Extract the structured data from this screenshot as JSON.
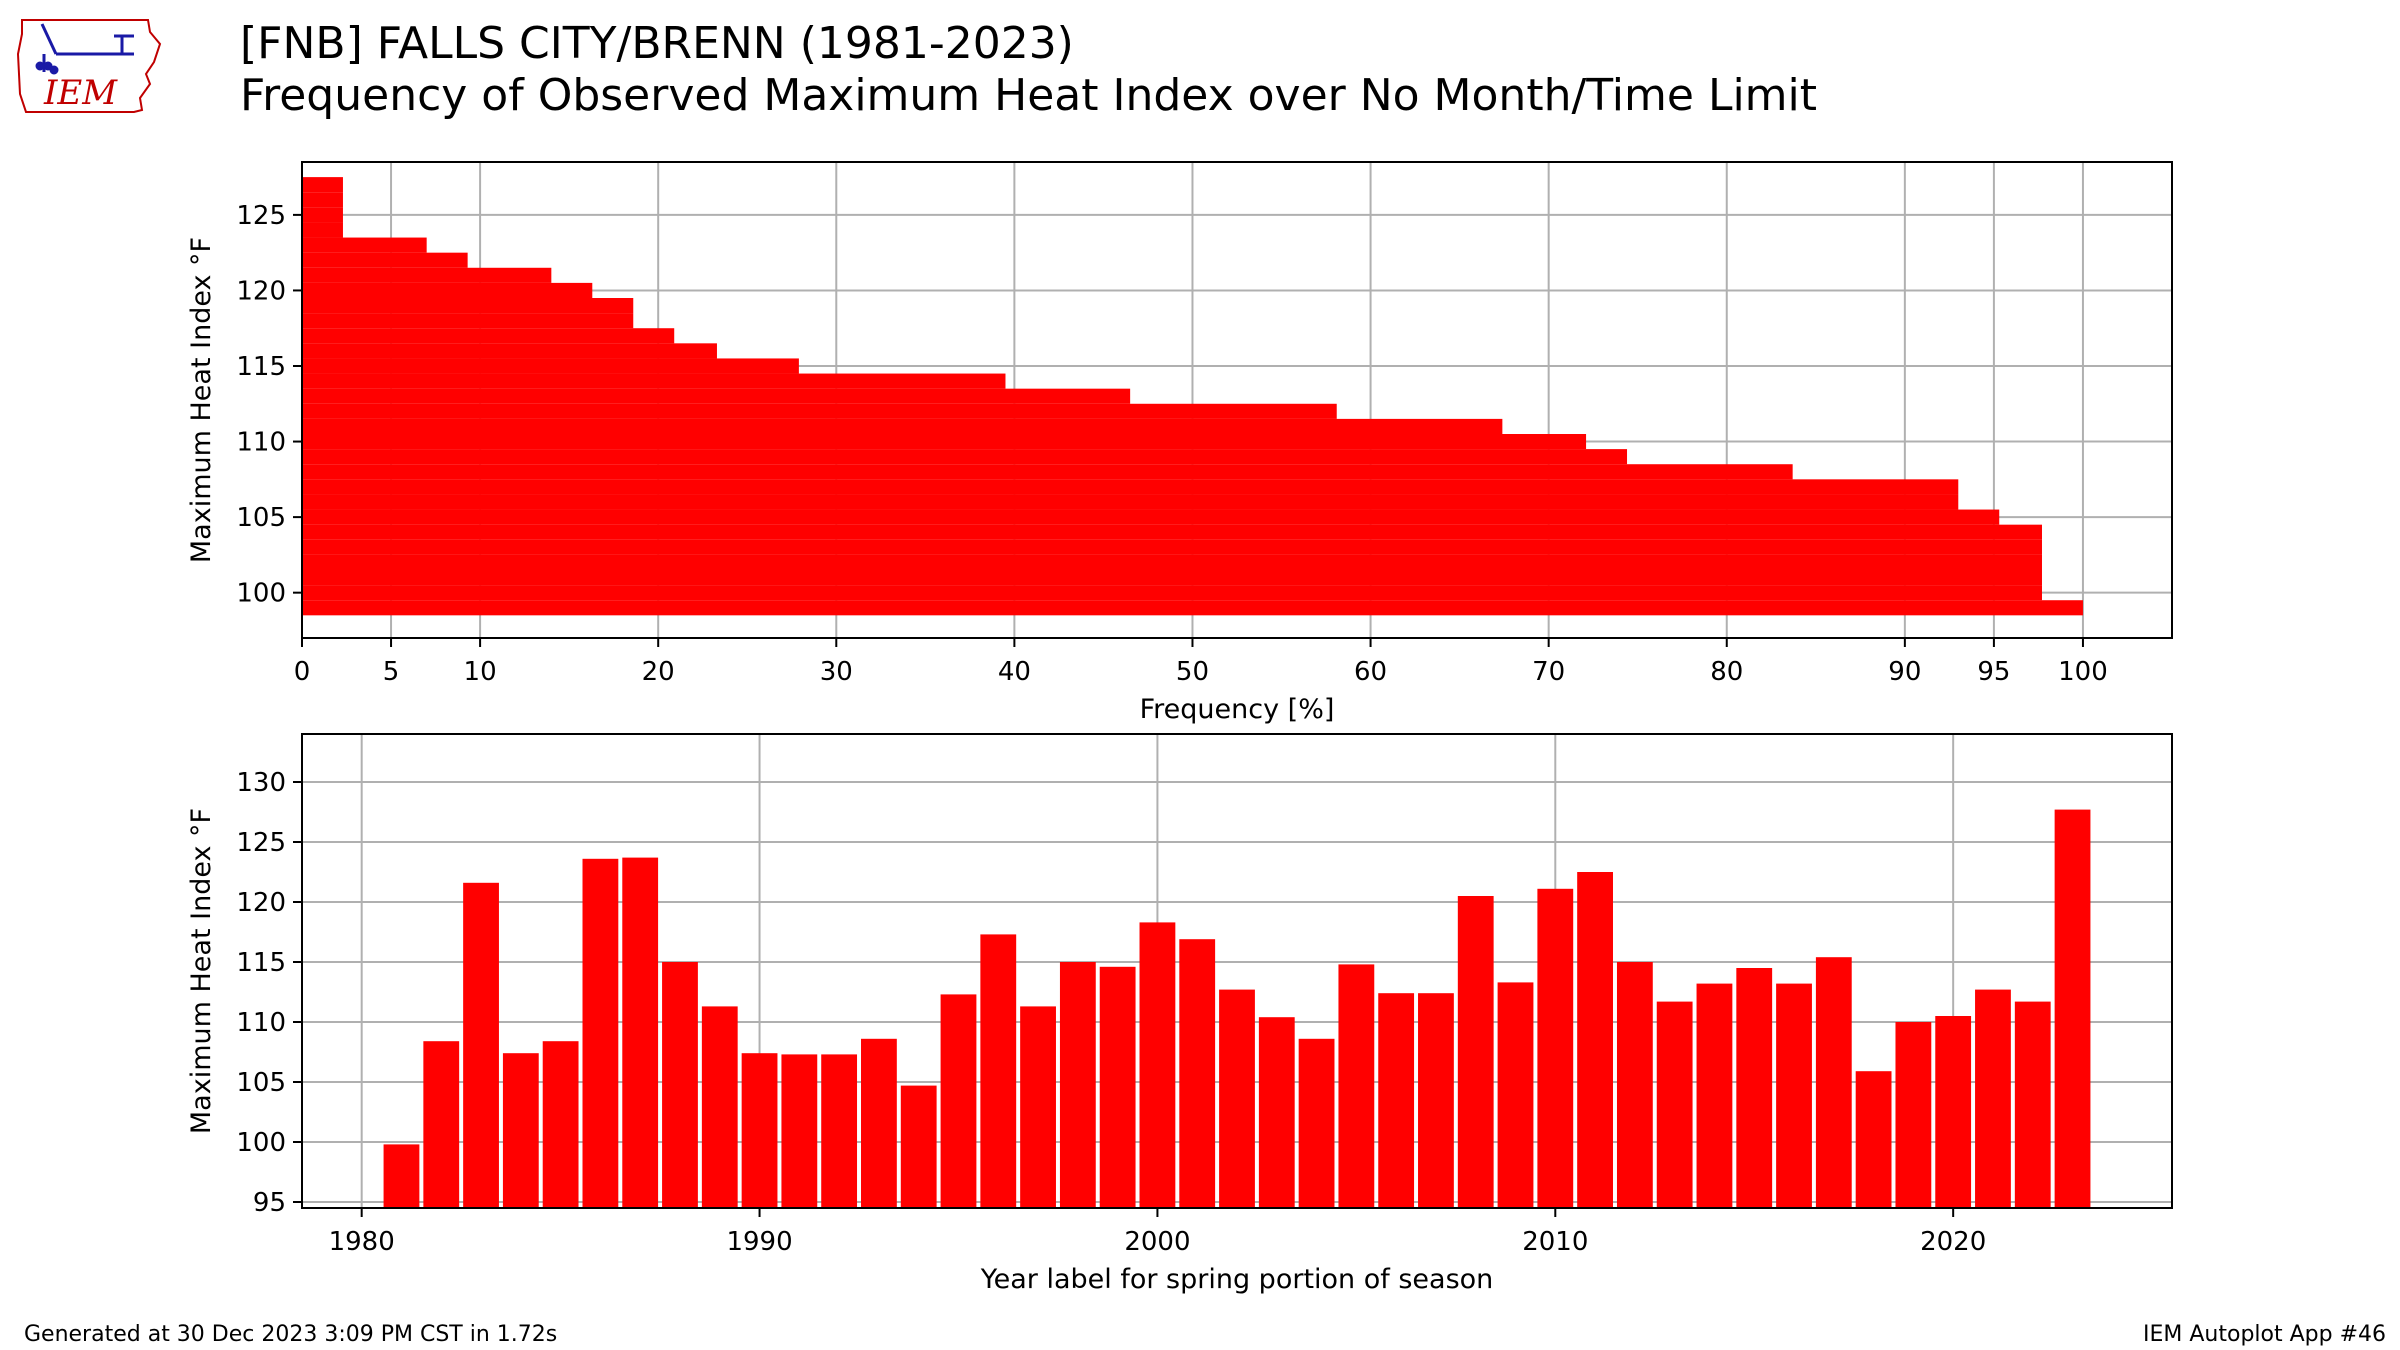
{
  "header": {
    "title": "[FNB] FALLS CITY/BRENN (1981-2023)",
    "subtitle": "Frequency of Observed Maximum Heat Index over No Month/Time Limit"
  },
  "logo": {
    "text": "IEM",
    "color": "#c00000",
    "accent": "#1a1aa6"
  },
  "footer": {
    "left": "Generated at 30 Dec 2023 3:09 PM CST in 1.72s",
    "right": "IEM Autoplot App #46"
  },
  "colors": {
    "bar": "#ff0000",
    "grid": "#b0b0b0",
    "axis": "#000000"
  },
  "chart_data": [
    {
      "type": "bar",
      "orientation": "horizontal",
      "xlabel": "Frequency [%]",
      "ylabel": "Maximum Heat Index $^\\circ$F",
      "ylabel_display": "Maximum Heat Index °F",
      "xlim": [
        0,
        105
      ],
      "ylim": [
        97,
        128.5
      ],
      "xticks": [
        0,
        5,
        10,
        20,
        30,
        40,
        50,
        60,
        70,
        80,
        90,
        95,
        100
      ],
      "yticks": [
        100,
        105,
        110,
        115,
        120,
        125
      ],
      "grid": true,
      "bar_height": 1.0,
      "heat_index": [
        127,
        126,
        125,
        124,
        123,
        122,
        121,
        120,
        119,
        118,
        117,
        116,
        115,
        114,
        113,
        112,
        111,
        110,
        109,
        108,
        107,
        106,
        105,
        104,
        103,
        102,
        101,
        100,
        99
      ],
      "frequency": [
        2.3,
        2.3,
        2.3,
        2.3,
        7.0,
        9.3,
        14.0,
        16.3,
        18.6,
        18.6,
        20.9,
        23.3,
        27.9,
        39.5,
        46.5,
        58.1,
        67.4,
        72.1,
        74.4,
        83.7,
        93.0,
        93.0,
        95.3,
        97.7,
        97.7,
        97.7,
        97.7,
        97.7,
        100.0
      ]
    },
    {
      "type": "bar",
      "xlabel": "Year label for spring portion of season",
      "ylabel": "Maximum Heat Index $^\\circ$F",
      "ylabel_display": "Maximum Heat Index °F",
      "xlim": [
        1978.5,
        2025.5
      ],
      "ylim": [
        94.5,
        134
      ],
      "xticks": [
        1980,
        1990,
        2000,
        2010,
        2020
      ],
      "yticks": [
        95,
        100,
        105,
        110,
        115,
        120,
        125,
        130
      ],
      "grid": true,
      "bar_width": 0.9,
      "years": [
        1981,
        1982,
        1983,
        1984,
        1985,
        1986,
        1987,
        1988,
        1989,
        1990,
        1991,
        1992,
        1993,
        1994,
        1995,
        1996,
        1997,
        1998,
        1999,
        2000,
        2001,
        2002,
        2003,
        2004,
        2005,
        2006,
        2007,
        2008,
        2009,
        2010,
        2011,
        2012,
        2013,
        2014,
        2015,
        2016,
        2017,
        2018,
        2019,
        2020,
        2021,
        2022,
        2023
      ],
      "values": [
        99.8,
        108.4,
        121.6,
        107.4,
        108.4,
        123.6,
        123.7,
        115.0,
        111.3,
        107.4,
        107.3,
        107.3,
        108.6,
        104.7,
        112.3,
        117.3,
        111.3,
        115.0,
        114.6,
        118.3,
        116.9,
        112.7,
        110.4,
        108.6,
        114.8,
        112.4,
        112.4,
        120.5,
        113.3,
        121.1,
        122.5,
        115.0,
        111.7,
        113.2,
        114.5,
        113.2,
        115.4,
        105.9,
        110.0,
        110.5,
        112.7,
        111.7,
        127.7
      ]
    }
  ]
}
